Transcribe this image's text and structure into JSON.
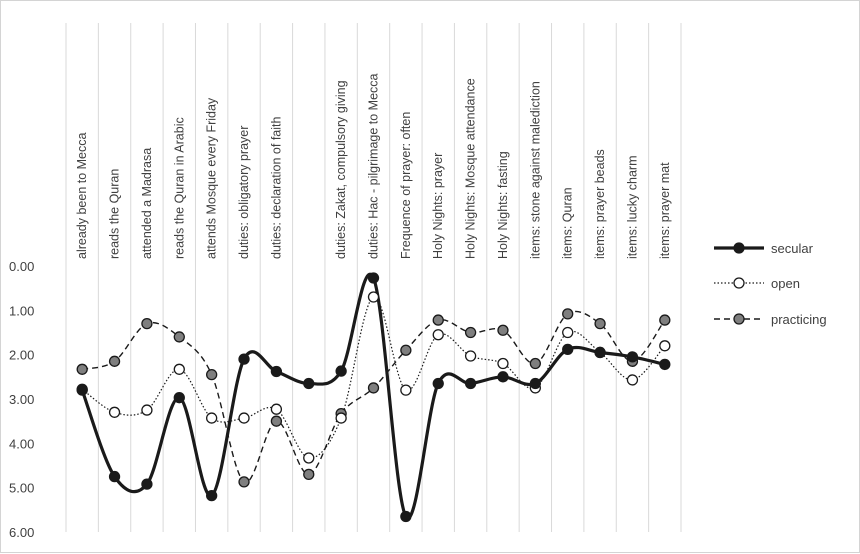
{
  "chart_data": {
    "type": "line",
    "smooth": true,
    "y_reversed": true,
    "ylim": [
      0,
      6
    ],
    "y_ticks": [
      "0.00",
      "1.00",
      "2.00",
      "3.00",
      "4.00",
      "5.00",
      "6.00"
    ],
    "grid": "vertical",
    "legend_position": "right",
    "categories": [
      "already been to Mecca",
      "reads  the Quran",
      "attended a Madrasa",
      "reads the Quran in Arabic",
      "attends  Mosque every Friday",
      "duties: obligatory prayer",
      "duties: declaration of faith",
      "",
      "duties: Zakat, compulsory giving",
      "duties:  Hac - pilgrimage to Mecca",
      "Frequence of prayer: often",
      "Holy Nights: prayer",
      "Holy Nights: Mosque attendance",
      "Holy Nights: fasting",
      "items: stone against malediction",
      "items: Quran",
      "items: prayer beads",
      "items: lucky charm",
      "items: prayer mat"
    ],
    "series": [
      {
        "name": "secular",
        "style": "solid-thick",
        "color": "#1a1a1a",
        "marker_fill": "#1a1a1a",
        "values": [
          2.8,
          4.75,
          4.92,
          2.97,
          5.18,
          2.1,
          2.38,
          2.65,
          2.37,
          0.27,
          5.65,
          2.65,
          2.65,
          2.5,
          2.65,
          1.88,
          1.95,
          2.05,
          2.22
        ]
      },
      {
        "name": "open",
        "style": "dotted",
        "color": "#1a1a1a",
        "marker_fill": "#ffffff",
        "values": [
          2.78,
          3.3,
          3.25,
          2.33,
          3.43,
          3.43,
          3.23,
          4.33,
          3.43,
          0.7,
          2.8,
          1.55,
          2.03,
          2.2,
          2.75,
          1.5,
          1.95,
          2.57,
          1.8
        ]
      },
      {
        "name": "practicing",
        "style": "dashed",
        "color": "#1a1a1a",
        "marker_fill": "#7f7f7f",
        "values": [
          2.33,
          2.15,
          1.3,
          1.6,
          2.45,
          4.87,
          3.5,
          4.7,
          3.33,
          2.75,
          1.9,
          1.22,
          1.5,
          1.45,
          2.2,
          1.08,
          1.3,
          2.15,
          1.22
        ]
      }
    ]
  }
}
